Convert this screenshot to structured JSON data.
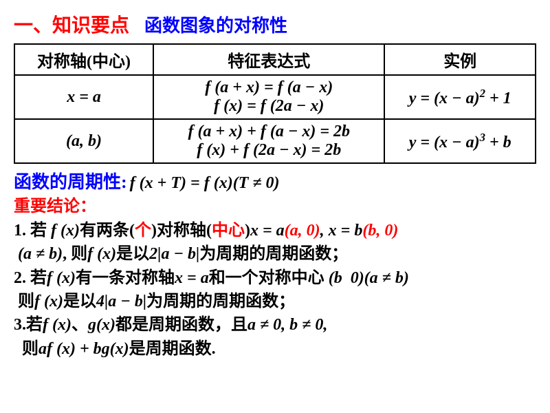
{
  "title": {
    "section_label": "一、知识要点",
    "subtitle": "函数图象的对称性",
    "section_color": "#ff0000",
    "subtitle_color": "#0000ff",
    "section_fontsize": 28,
    "subtitle_fontsize": 26
  },
  "table": {
    "border_color": "#000000",
    "border_width": 2,
    "text_color": "#000000",
    "fontsize": 24,
    "columns": [
      "对称轴(中心)",
      "特征表达式",
      "实例"
    ],
    "rows": [
      {
        "axis": "x = a",
        "expr_line1": "f (a + x) = f (a − x)",
        "expr_line2": "f (x) = f (2a − x)",
        "example": "y = (x − a)² + 1"
      },
      {
        "axis": "(a, b)",
        "expr_line1": "f (a + x) + f (a − x) = 2b",
        "expr_line2": "f (x) + f (2a − x) = 2b",
        "example": "y = (x − a)³ + b"
      }
    ]
  },
  "periodicity": {
    "label": "函数的周期性:",
    "formula": " f (x + T) = f (x)(T ≠ 0)",
    "label_color": "#0000ff",
    "formula_color": "#000000",
    "fontsize": 26
  },
  "conclusions": {
    "header": "重要结论：",
    "header_color": "#ff0000",
    "fontsize": 24,
    "items": [
      {
        "p1": "1. 若",
        "p2": "f (x)",
        "p3": "有两条(",
        "p4": "个",
        "p5": ")对称轴(",
        "p6": "中心",
        "p7": ")",
        "p8": "x = a",
        "p9": "(a, 0)",
        "p10": ", ",
        "p11": "x = b",
        "p12": "(b, 0)",
        "line2a": "(a ≠ b)",
        "line2b": ", 则",
        "line2c": "f (x)",
        "line2d": "是以",
        "line2e": "2|a − b|",
        "line2f": "为周期的周期函数；"
      },
      {
        "p1": "2. 若",
        "p2": "f (x)",
        "p3": "有一条对称轴",
        "p4": "x = a",
        "p5": "和一个对称中心 ",
        "p6": "(b  0)(a ≠ b)",
        "line2a": "则",
        "line2b": "f (x)",
        "line2c": "是以",
        "line2d": "4|a − b|",
        "line2e": "为周期的周期函数；"
      },
      {
        "p1": "3.若",
        "p2": "f (x)",
        "p3": "、",
        "p4": "g(x)",
        "p5": "都是周期函数，且",
        "p6": "a ≠ 0, b ≠ 0,",
        "line2a": "则",
        "line2b": "af (x) + bg(x)",
        "line2c": "是周期函数."
      }
    ]
  },
  "page_background": "#ffffff"
}
